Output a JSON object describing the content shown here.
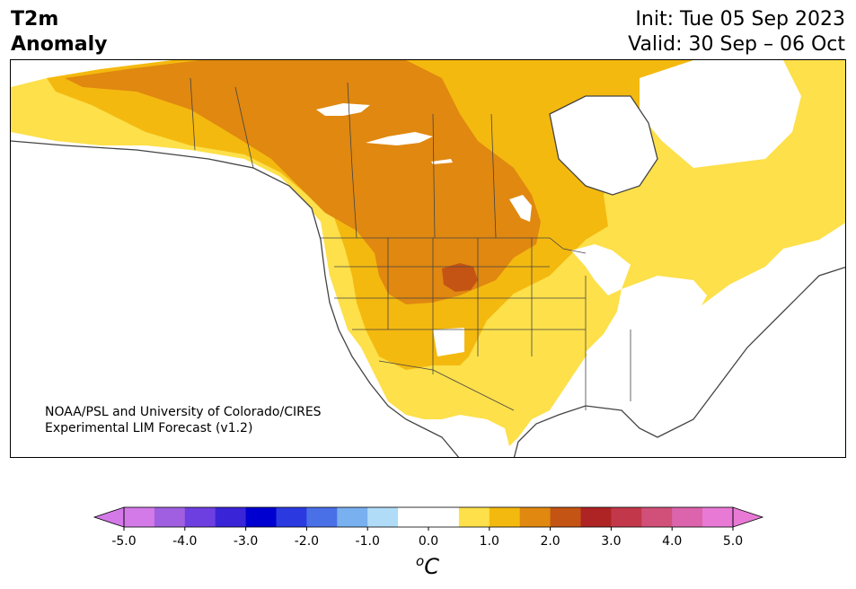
{
  "header": {
    "title_line1": "T2m",
    "title_line2": "Anomaly",
    "init": "Init: Tue 05 Sep 2023",
    "valid": "Valid: 30 Sep – 06 Oct"
  },
  "credit": {
    "line1": "NOAA/PSL and University of Colorado/CIRES",
    "line2": "Experimental LIM Forecast (v1.2)"
  },
  "colorbar": {
    "unit_base": "C",
    "unit_sup": "o",
    "tick_labels": [
      "-5.0",
      "-4.0",
      "-3.0",
      "-2.0",
      "-1.0",
      "0.0",
      "1.0",
      "2.0",
      "3.0",
      "4.0",
      "5.0"
    ],
    "colors": [
      "#d47ae8",
      "#a05fe0",
      "#6e3fe0",
      "#3a24d8",
      "#0000d0",
      "#2a3ae0",
      "#4a70e8",
      "#78b0f0",
      "#b0dcf8",
      "#ffffff",
      "#ffffff",
      "#fde04a",
      "#f4b90f",
      "#e08810",
      "#c45414",
      "#ae2424",
      "#c2384a",
      "#d0507a",
      "#dc64ac",
      "#e87ad6"
    ],
    "extend_low_color": "#d47ae8",
    "extend_high_color": "#e87ad6",
    "range": [
      -5.0,
      5.0
    ],
    "interval": 0.5
  },
  "map": {
    "ocean_color": "#ffffff",
    "anomaly_colors": {
      "neutral": "#ffffff",
      "plus_0_5": "#fde04a",
      "plus_1_0": "#f4b90f",
      "plus_1_5": "#e08810",
      "plus_2_0": "#c45414"
    },
    "line_color": "#444444"
  }
}
